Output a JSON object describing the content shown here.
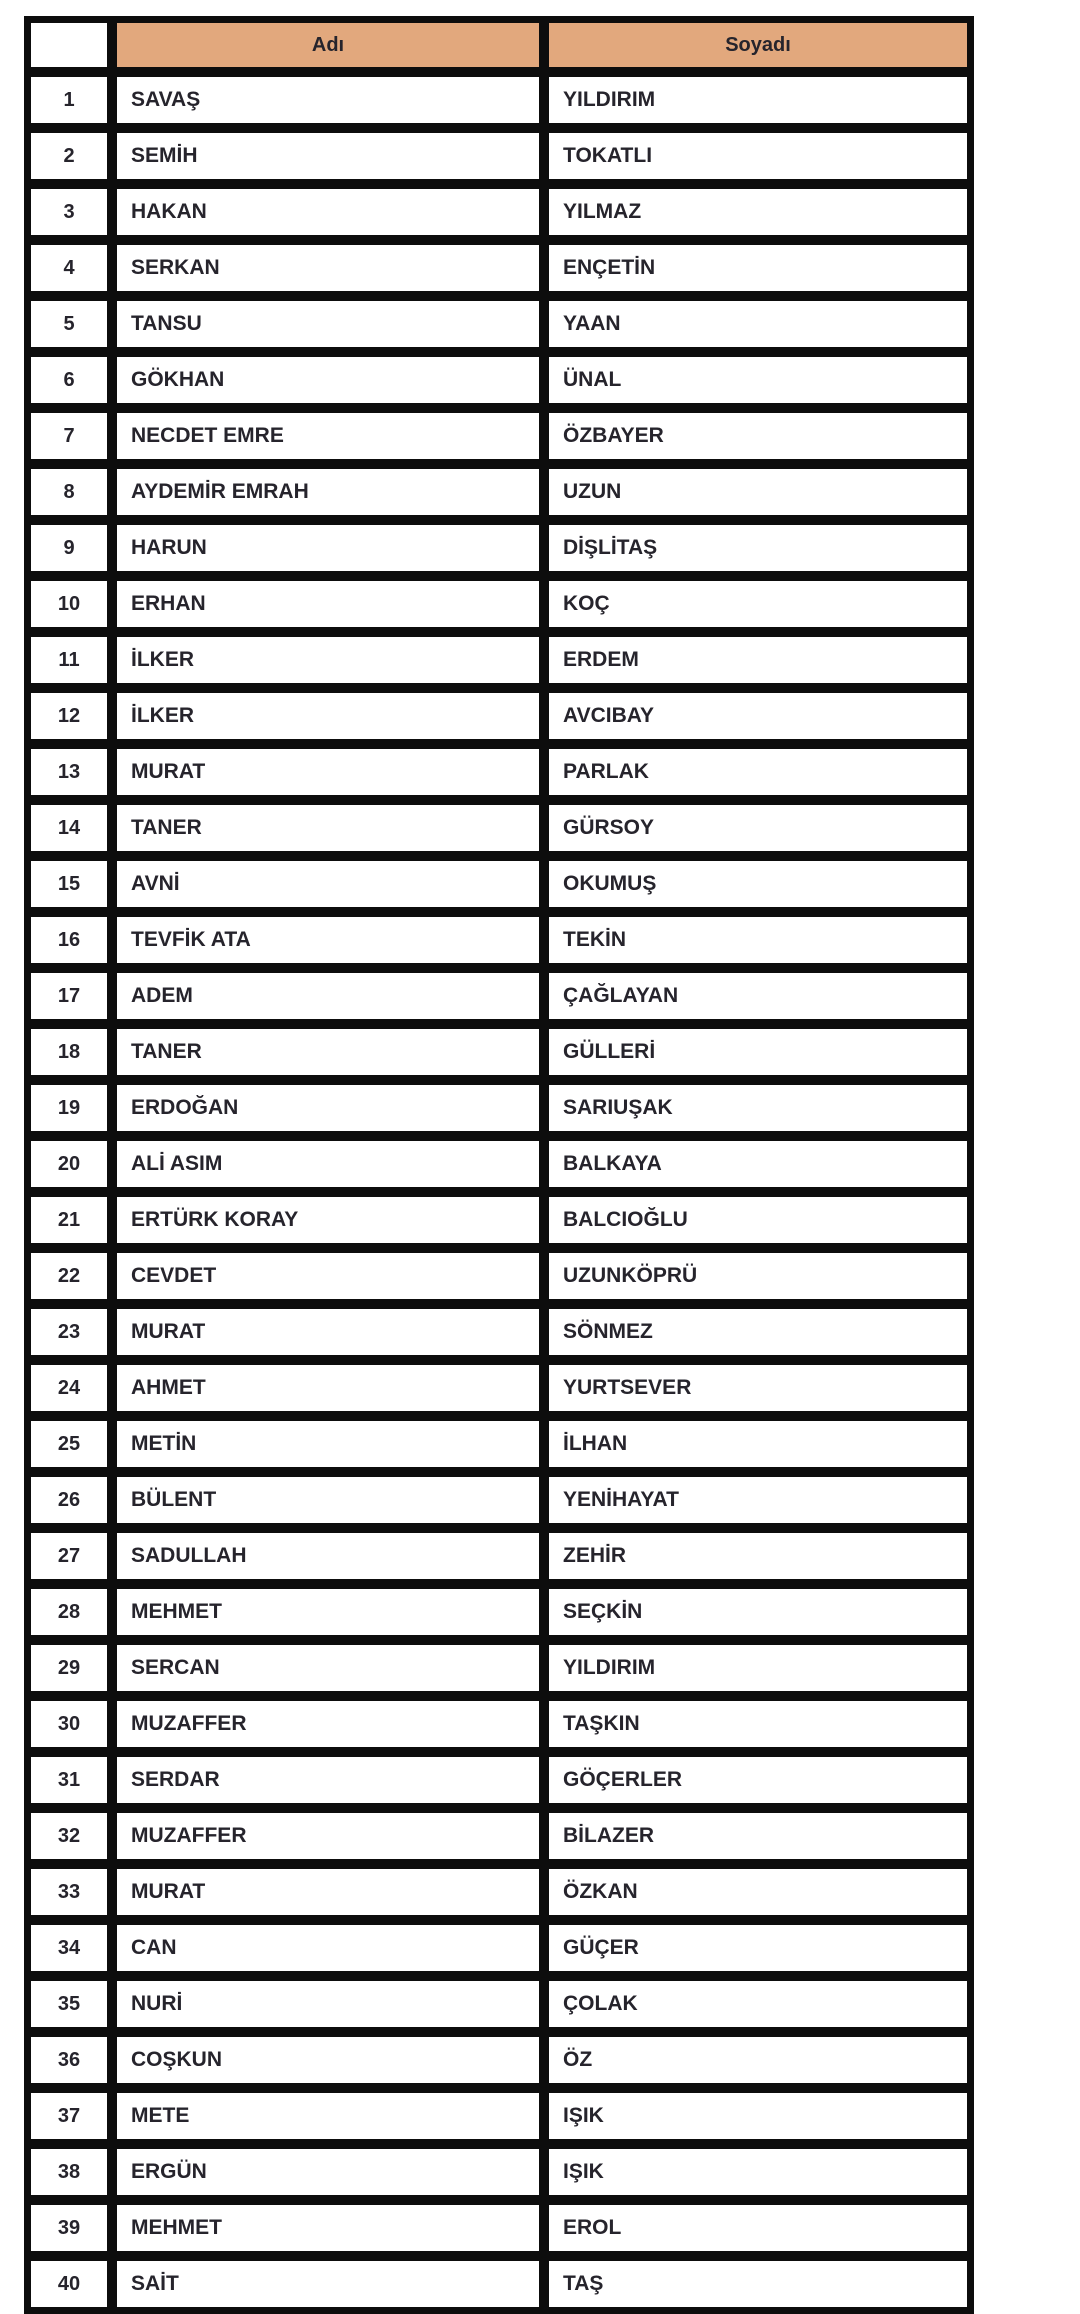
{
  "colors": {
    "header_bg": "#E2A87D",
    "grid": "#0D0D0D",
    "text": "#26242C",
    "page_bg": "#FFFFFF"
  },
  "table": {
    "headers": {
      "corner": "",
      "name": "Adı",
      "surname": "Soyadı"
    },
    "rows": [
      {
        "n": "1",
        "name": "SAVAŞ",
        "surname": "YILDIRIM"
      },
      {
        "n": "2",
        "name": "SEMİH",
        "surname": "TOKATLI"
      },
      {
        "n": "3",
        "name": "HAKAN",
        "surname": "YILMAZ"
      },
      {
        "n": "4",
        "name": "SERKAN",
        "surname": "ENÇETİN"
      },
      {
        "n": "5",
        "name": "TANSU",
        "surname": "YAAN"
      },
      {
        "n": "6",
        "name": "GÖKHAN",
        "surname": "ÜNAL"
      },
      {
        "n": "7",
        "name": "NECDET EMRE",
        "surname": "ÖZBAYER"
      },
      {
        "n": "8",
        "name": "AYDEMİR EMRAH",
        "surname": "UZUN"
      },
      {
        "n": "9",
        "name": "HARUN",
        "surname": "DİŞLİTAŞ"
      },
      {
        "n": "10",
        "name": "ERHAN",
        "surname": "KOÇ"
      },
      {
        "n": "11",
        "name": "İLKER",
        "surname": "ERDEM"
      },
      {
        "n": "12",
        "name": "İLKER",
        "surname": "AVCIBAY"
      },
      {
        "n": "13",
        "name": "MURAT",
        "surname": "PARLAK"
      },
      {
        "n": "14",
        "name": "TANER",
        "surname": "GÜRSOY"
      },
      {
        "n": "15",
        "name": "AVNİ",
        "surname": "OKUMUŞ"
      },
      {
        "n": "16",
        "name": "TEVFİK ATA",
        "surname": "TEKİN"
      },
      {
        "n": "17",
        "name": "ADEM",
        "surname": "ÇAĞLAYAN"
      },
      {
        "n": "18",
        "name": "TANER",
        "surname": "GÜLLERİ"
      },
      {
        "n": "19",
        "name": "ERDOĞAN",
        "surname": "SARIUŞAK"
      },
      {
        "n": "20",
        "name": "ALİ ASIM",
        "surname": "BALKAYA"
      },
      {
        "n": "21",
        "name": "ERTÜRK KORAY",
        "surname": "BALCIOĞLU"
      },
      {
        "n": "22",
        "name": "CEVDET",
        "surname": "UZUNKÖPRÜ"
      },
      {
        "n": "23",
        "name": "MURAT",
        "surname": "SÖNMEZ"
      },
      {
        "n": "24",
        "name": "AHMET",
        "surname": "YURTSEVER"
      },
      {
        "n": "25",
        "name": "METİN",
        "surname": "İLHAN"
      },
      {
        "n": "26",
        "name": "BÜLENT",
        "surname": "YENİHAYAT"
      },
      {
        "n": "27",
        "name": "SADULLAH",
        "surname": "ZEHİR"
      },
      {
        "n": "28",
        "name": "MEHMET",
        "surname": "SEÇKİN"
      },
      {
        "n": "29",
        "name": "SERCAN",
        "surname": "YILDIRIM"
      },
      {
        "n": "30",
        "name": "MUZAFFER",
        "surname": "TAŞKIN"
      },
      {
        "n": "31",
        "name": "SERDAR",
        "surname": "GÖÇERLER"
      },
      {
        "n": "32",
        "name": "MUZAFFER",
        "surname": "BİLAZER"
      },
      {
        "n": "33",
        "name": "MURAT",
        "surname": "ÖZKAN"
      },
      {
        "n": "34",
        "name": "CAN",
        "surname": "GÜÇER"
      },
      {
        "n": "35",
        "name": "NURİ",
        "surname": "ÇOLAK"
      },
      {
        "n": "36",
        "name": "COŞKUN",
        "surname": "ÖZ"
      },
      {
        "n": "37",
        "name": "METE",
        "surname": "IŞIK"
      },
      {
        "n": "38",
        "name": "ERGÜN",
        "surname": "IŞIK"
      },
      {
        "n": "39",
        "name": "MEHMET",
        "surname": "EROL"
      },
      {
        "n": "40",
        "name": "SAİT",
        "surname": "TAŞ"
      }
    ]
  }
}
